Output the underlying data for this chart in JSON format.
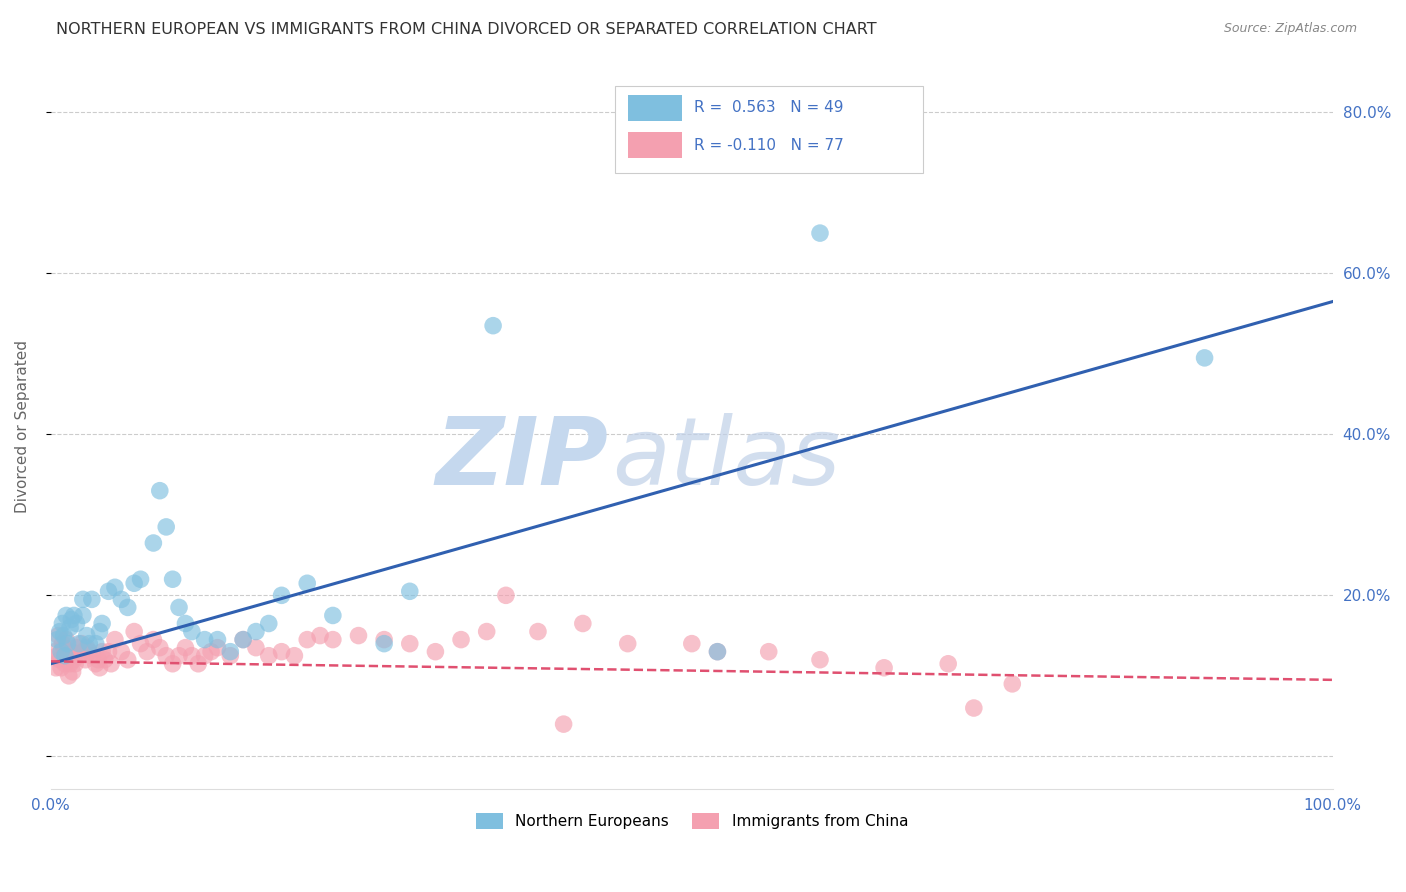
{
  "title": "NORTHERN EUROPEAN VS IMMIGRANTS FROM CHINA DIVORCED OR SEPARATED CORRELATION CHART",
  "source": "Source: ZipAtlas.com",
  "ylabel": "Divorced or Separated",
  "xlim": [
    0.0,
    1.0
  ],
  "ylim": [
    -0.04,
    0.86
  ],
  "x_ticks": [
    0.0,
    0.2,
    0.4,
    0.6,
    0.8,
    1.0
  ],
  "x_tick_labels": [
    "0.0%",
    "",
    "",
    "",
    "",
    "100.0%"
  ],
  "y_ticks": [
    0.0,
    0.2,
    0.4,
    0.6,
    0.8
  ],
  "y_tick_labels": [
    "",
    "20.0%",
    "40.0%",
    "60.0%",
    "80.0%"
  ],
  "blue_color": "#7fbfdf",
  "pink_color": "#f4a0b0",
  "blue_line_color": "#3060b0",
  "pink_line_color": "#e05070",
  "blue_line_x": [
    0.0,
    1.0
  ],
  "blue_line_y": [
    0.115,
    0.565
  ],
  "pink_line_x": [
    0.0,
    1.0
  ],
  "pink_line_y": [
    0.118,
    0.095
  ],
  "background_color": "#ffffff",
  "grid_color": "#cccccc",
  "title_color": "#333333",
  "right_axis_color": "#4472c4",
  "bottom_axis_color": "#4472c4",
  "watermark_zip_color": "#c5d8ee",
  "watermark_atlas_color": "#c0d0e8"
}
